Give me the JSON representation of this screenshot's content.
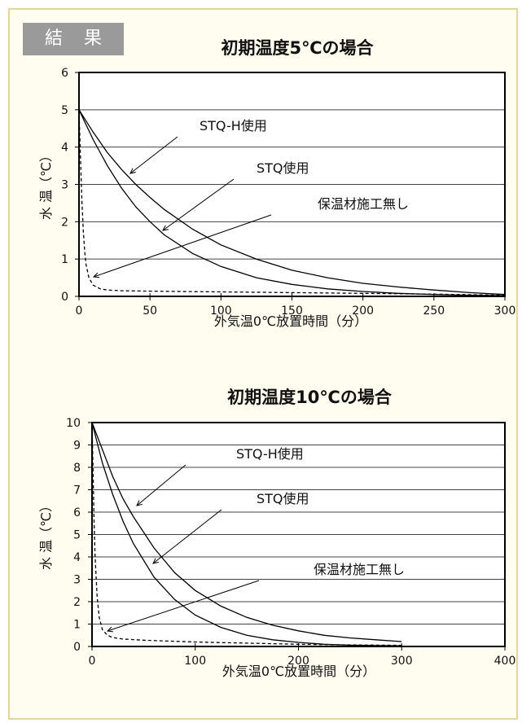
{
  "badge": {
    "left": "結",
    "right": "果"
  },
  "chart_data": [
    {
      "type": "line",
      "title": "初期温度5℃の場合",
      "xlabel": "外気温0℃放置時間（分）",
      "ylabel": "水 温（℃）",
      "xlim": [
        0,
        300
      ],
      "ylim": [
        0,
        6
      ],
      "xticks": [
        0,
        50,
        100,
        150,
        200,
        250,
        300
      ],
      "yticks": [
        0,
        1,
        2,
        3,
        4,
        5,
        6
      ],
      "grid": true,
      "series": [
        {
          "name": "STQ-H使用",
          "style": "solid",
          "x": [
            0,
            10,
            20,
            30,
            40,
            50,
            60,
            80,
            100,
            125,
            150,
            175,
            200,
            225,
            250,
            275,
            300
          ],
          "y": [
            5.0,
            4.4,
            3.85,
            3.4,
            3.0,
            2.65,
            2.33,
            1.8,
            1.38,
            1.0,
            0.7,
            0.5,
            0.35,
            0.25,
            0.17,
            0.1,
            0.05
          ]
        },
        {
          "name": "STQ使用",
          "style": "solid",
          "x": [
            0,
            10,
            20,
            30,
            40,
            50,
            60,
            80,
            100,
            125,
            150,
            175,
            200,
            225,
            250,
            275,
            300
          ],
          "y": [
            5.0,
            4.2,
            3.5,
            2.9,
            2.4,
            2.0,
            1.65,
            1.15,
            0.8,
            0.5,
            0.32,
            0.2,
            0.13,
            0.08,
            0.05,
            0.03,
            0.02
          ]
        },
        {
          "name": "保温材施工無し",
          "style": "dashed",
          "x": [
            0,
            1,
            2,
            3,
            4,
            5,
            7,
            10,
            15,
            20,
            30,
            50,
            100,
            150,
            200,
            250,
            300
          ],
          "y": [
            5.0,
            3.8,
            2.6,
            1.8,
            1.2,
            0.85,
            0.5,
            0.3,
            0.2,
            0.17,
            0.15,
            0.14,
            0.12,
            0.1,
            0.08,
            0.06,
            0.03
          ]
        }
      ]
    },
    {
      "type": "line",
      "title": "初期温度10℃の場合",
      "xlabel": "外気温0℃放置時間（分）",
      "ylabel": "水 温（℃）",
      "xlim": [
        0,
        400
      ],
      "ylim": [
        0,
        10
      ],
      "xticks": [
        0,
        100,
        200,
        300,
        400
      ],
      "yticks": [
        0,
        1,
        2,
        3,
        4,
        5,
        6,
        7,
        8,
        9,
        10
      ],
      "grid": true,
      "series": [
        {
          "name": "STQ-H使用",
          "style": "solid",
          "x": [
            0,
            10,
            20,
            30,
            40,
            60,
            80,
            100,
            125,
            150,
            175,
            200,
            225,
            250,
            275,
            300
          ],
          "y": [
            10.0,
            8.8,
            7.6,
            6.6,
            5.8,
            4.4,
            3.3,
            2.5,
            1.8,
            1.3,
            0.95,
            0.7,
            0.5,
            0.38,
            0.3,
            0.22
          ]
        },
        {
          "name": "STQ使用",
          "style": "solid",
          "x": [
            0,
            10,
            20,
            30,
            40,
            60,
            80,
            100,
            125,
            150,
            175,
            200,
            225,
            250,
            275,
            300
          ],
          "y": [
            10.0,
            8.2,
            6.8,
            5.6,
            4.6,
            3.1,
            2.1,
            1.4,
            0.85,
            0.5,
            0.3,
            0.18,
            0.1,
            0.06,
            0.04,
            0.03
          ]
        },
        {
          "name": "保温材施工無し",
          "style": "dashed",
          "x": [
            0,
            1,
            2,
            3,
            5,
            7,
            10,
            15,
            20,
            30,
            50,
            100,
            150,
            200,
            250,
            300
          ],
          "y": [
            10.0,
            7.8,
            5.6,
            4.0,
            2.2,
            1.3,
            0.75,
            0.5,
            0.4,
            0.33,
            0.28,
            0.2,
            0.15,
            0.1,
            0.07,
            0.05
          ]
        }
      ]
    }
  ]
}
